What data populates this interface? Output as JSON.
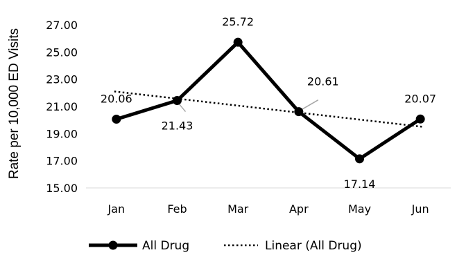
{
  "chart_data": {
    "type": "line",
    "title": "",
    "xlabel": "",
    "ylabel": "Rate per 10,000 ED Visits",
    "categories": [
      "Jan",
      "Feb",
      "Mar",
      "Apr",
      "May",
      "Jun"
    ],
    "ylim": [
      15,
      27
    ],
    "yticks": [
      "15.00",
      "17.00",
      "19.00",
      "21.00",
      "23.00",
      "25.00",
      "27.00"
    ],
    "grid": false,
    "legend_position": "bottom",
    "series": [
      {
        "name": "All Drug",
        "values": [
          20.06,
          21.43,
          25.72,
          20.61,
          17.14,
          20.07
        ],
        "labels": [
          "20.06",
          "21.43",
          "25.72",
          "20.61",
          "17.14",
          "20.07"
        ],
        "color": "#000000",
        "marker": "circle"
      }
    ],
    "trendline": {
      "name": "Linear (All Drug)",
      "type": "linear",
      "style": "dotted",
      "start": 22.1,
      "end": 19.5,
      "color": "#000000"
    },
    "leader_line_color": "#a6a6a6"
  }
}
